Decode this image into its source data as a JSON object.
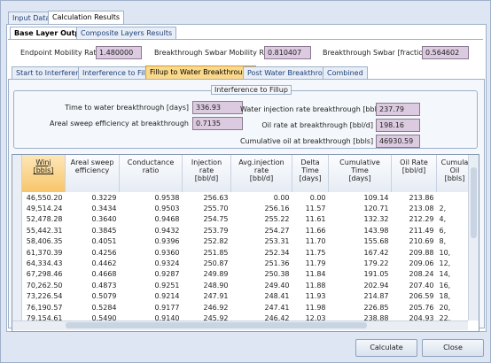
{
  "tabs": [
    "Input Data",
    "Calculation Results"
  ],
  "subtabs": [
    "Base Layer Output",
    "Composite Layers Results"
  ],
  "fields": [
    {
      "label": "Endpoint Mobility Ratio",
      "value": "1.480000"
    },
    {
      "label": "Breakthrough Swbar Mobility Ratio",
      "value": "0.810407"
    },
    {
      "label": "Breakthrough Swbar [fraction]",
      "value": "0.564602"
    }
  ],
  "stage_tabs": [
    "Start to Interference",
    "Interference to Fillup",
    "Fillup to Water Breakthrough",
    "Post Water Breakthrough",
    "Combined"
  ],
  "group": {
    "title": "Interference to Fillup",
    "left": [
      {
        "label": "Time to water breakthrough [days]",
        "value": "336.93"
      },
      {
        "label": "Areal sweep efficiency at breakthrough",
        "value": "0.7135"
      }
    ],
    "right": [
      {
        "label": "Water injection rate breakthrough [bbl/d]",
        "value": "237.79"
      },
      {
        "label": "Oil rate at breakthrough [bbl/d]",
        "value": "198.16"
      },
      {
        "label": "Cumulative oil at breakthrough [bbls]",
        "value": "46930.59"
      }
    ]
  },
  "table": {
    "columns": [
      [
        "Winj",
        "[bbls]"
      ],
      [
        "Areal sweep",
        "efficiency"
      ],
      [
        "Conductance",
        "ratio"
      ],
      [
        "Injection",
        "rate",
        "[bbl/d]"
      ],
      [
        "Avg.injection",
        "rate",
        "[bbl/d]"
      ],
      [
        "Delta",
        "Time",
        "[days]"
      ],
      [
        "Cumulative",
        "Time",
        "[days]"
      ],
      [
        "Oil Rate",
        "[bbl/d]"
      ],
      [
        "Cumula",
        "Oil",
        "[bbls]"
      ]
    ],
    "rows": [
      [
        "46,550.20",
        "0.3229",
        "0.9538",
        "256.63",
        "0.00",
        "0.00",
        "109.14",
        "213.86"
      ],
      [
        "49,514.24",
        "0.3434",
        "0.9503",
        "255.70",
        "256.16",
        "11.57",
        "120.71",
        "213.08",
        "2,"
      ],
      [
        "52,478.28",
        "0.3640",
        "0.9468",
        "254.75",
        "255.22",
        "11.61",
        "132.32",
        "212.29",
        "4,"
      ],
      [
        "55,442.31",
        "0.3845",
        "0.9432",
        "253.79",
        "254.27",
        "11.66",
        "143.98",
        "211.49",
        "6,"
      ],
      [
        "58,406.35",
        "0.4051",
        "0.9396",
        "252.82",
        "253.31",
        "11.70",
        "155.68",
        "210.69",
        "8,"
      ],
      [
        "61,370.39",
        "0.4256",
        "0.9360",
        "251.85",
        "252.34",
        "11.75",
        "167.42",
        "209.88",
        "10,"
      ],
      [
        "64,334.43",
        "0.4462",
        "0.9324",
        "250.87",
        "251.36",
        "11.79",
        "179.22",
        "209.06",
        "12,"
      ],
      [
        "67,298.46",
        "0.4668",
        "0.9287",
        "249.89",
        "250.38",
        "11.84",
        "191.05",
        "208.24",
        "14,"
      ],
      [
        "70,262.50",
        "0.4873",
        "0.9251",
        "248.90",
        "249.40",
        "11.88",
        "202.94",
        "207.40",
        "16,"
      ],
      [
        "73,226.54",
        "0.5079",
        "0.9214",
        "247.91",
        "248.41",
        "11.93",
        "214.87",
        "206.59",
        "18,"
      ],
      [
        "76,190.57",
        "0.5284",
        "0.9177",
        "246.92",
        "247.41",
        "11.98",
        "226.85",
        "205.76",
        "20,"
      ],
      [
        "79,154.61",
        "0.5490",
        "0.9140",
        "245.92",
        "246.42",
        "12.03",
        "238.88",
        "204.93",
        "22,"
      ]
    ]
  },
  "buttons": [
    "Calculate",
    "Close"
  ]
}
